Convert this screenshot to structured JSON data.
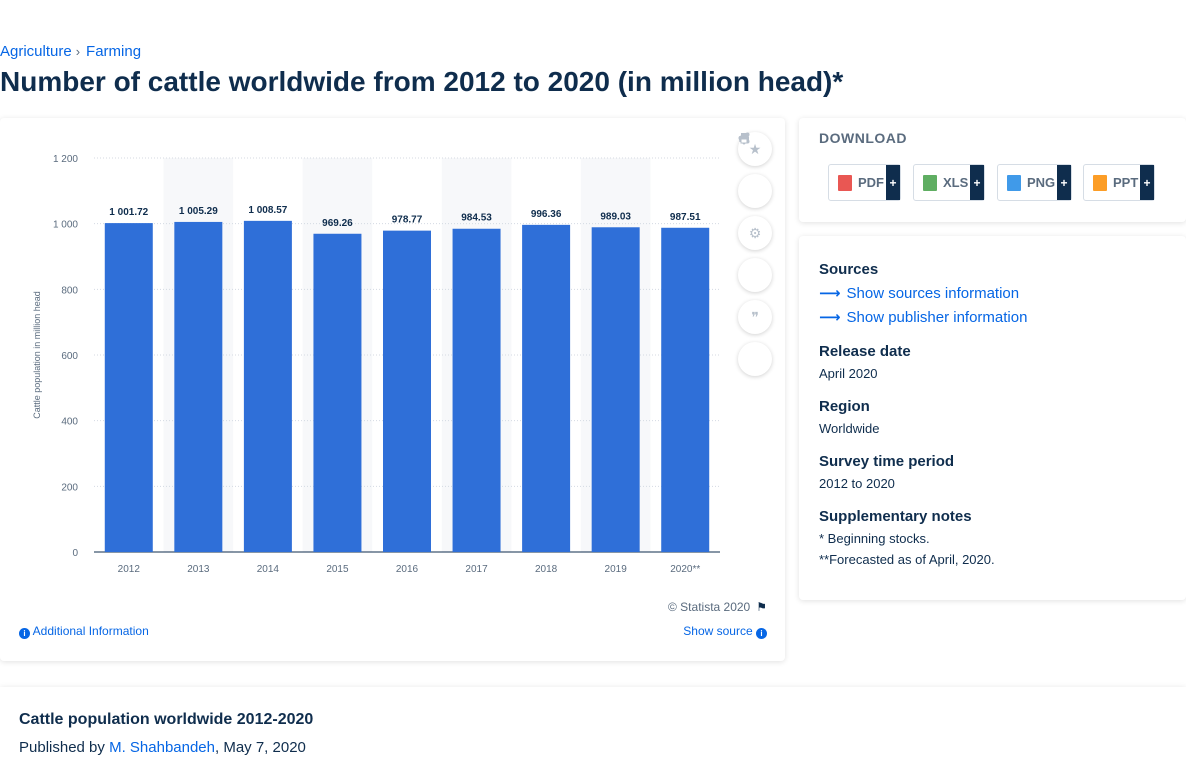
{
  "breadcrumb": {
    "item1": "Agriculture",
    "sep": "›",
    "item2": "Farming"
  },
  "page_title": "Number of cattle worldwide from 2012 to 2020 (in million head)*",
  "chart_data": {
    "type": "bar",
    "categories": [
      "2012",
      "2013",
      "2014",
      "2015",
      "2016",
      "2017",
      "2018",
      "2019",
      "2020**"
    ],
    "values": [
      1001.72,
      1005.29,
      1008.57,
      969.26,
      978.77,
      984.53,
      996.36,
      989.03,
      987.51
    ],
    "value_labels": [
      "1 001.72",
      "1 005.29",
      "1 008.57",
      "969.26",
      "978.77",
      "984.53",
      "996.36",
      "989.03",
      "987.51"
    ],
    "ylabel": "Cattle population in million head",
    "ylim": [
      0,
      1200
    ],
    "yticks": [
      0,
      200,
      400,
      600,
      800,
      1000,
      1200
    ],
    "ytick_labels": [
      "0",
      "200",
      "400",
      "600",
      "800",
      "1 000",
      "1 200"
    ],
    "bar_color": "#2f6fd8",
    "grid": true
  },
  "chart_footer": {
    "copyright": "© Statista 2020",
    "additional_info": "Additional Information",
    "show_source": "Show source"
  },
  "download": {
    "title": "DOWNLOAD",
    "buttons": [
      {
        "label": "PDF",
        "color": "#e53935"
      },
      {
        "label": "XLS",
        "color": "#43a047"
      },
      {
        "label": "PNG",
        "color": "#1e88e5"
      },
      {
        "label": "PPT",
        "color": "#fb8c00"
      }
    ],
    "plus": "+"
  },
  "meta": {
    "sources_label": "Sources",
    "show_sources": "Show sources information",
    "show_publisher": "Show publisher information",
    "release_label": "Release date",
    "release_value": "April 2020",
    "region_label": "Region",
    "region_value": "Worldwide",
    "period_label": "Survey time period",
    "period_value": "2012 to 2020",
    "notes_label": "Supplementary notes",
    "note1": "* Beginning stocks.",
    "note2": "**Forecasted as of April, 2020."
  },
  "bottom": {
    "title": "Cattle population worldwide 2012-2020",
    "published_prefix": "Published by",
    "author": "M. Shahbandeh",
    "date": ", May 7, 2020"
  }
}
